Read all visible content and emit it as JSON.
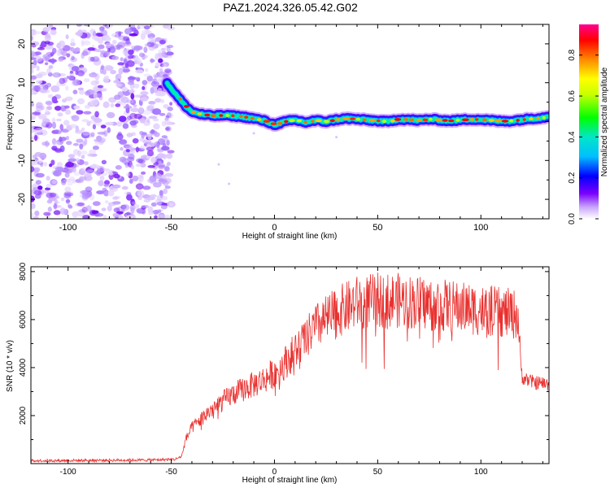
{
  "title": "PAZ1.2024.326.05.42.G02",
  "chart_data": [
    {
      "type": "heatmap",
      "xlabel": "Height of straight line (km)",
      "ylabel": "Frequency (Hz)",
      "xlim": [
        -118,
        133
      ],
      "ylim": [
        -25,
        25
      ],
      "x_ticks": [
        -100,
        -50,
        0,
        50,
        100
      ],
      "y_ticks": [
        -20,
        -10,
        0,
        10,
        20
      ],
      "x_tick_labels": [
        "-100",
        "-50",
        "0",
        "50",
        "100"
      ],
      "y_tick_labels": [
        "-20",
        "-10",
        "0",
        "10",
        "20"
      ],
      "colorbar": {
        "label": "Normalized spectral amplitude",
        "range": [
          0,
          0.95
        ],
        "ticks": [
          0.0,
          0.2,
          0.4,
          0.6,
          0.8
        ],
        "tick_labels": [
          "0.0",
          "0.2",
          "0.4",
          "0.6",
          "0.8"
        ]
      },
      "ridge": {
        "x": [
          -52,
          -50,
          -47,
          -44,
          -40,
          -35,
          -30,
          -25,
          -20,
          -15,
          -10,
          -5,
          0,
          5,
          10,
          15,
          20,
          25,
          30,
          35,
          40,
          45,
          50,
          55,
          60,
          65,
          70,
          75,
          80,
          85,
          90,
          95,
          100,
          105,
          110,
          115,
          120,
          125,
          130,
          133
        ],
        "y": [
          10,
          8.5,
          6.5,
          4.5,
          2.5,
          1.8,
          1.5,
          1.6,
          1.5,
          1.2,
          0.8,
          0.2,
          -0.8,
          0.0,
          0.4,
          -0.2,
          0.3,
          0.0,
          0.5,
          0.8,
          0.6,
          0.4,
          0.2,
          0.0,
          0.6,
          0.5,
          0.3,
          0.6,
          0.4,
          0.2,
          0.4,
          0.6,
          0.5,
          0.3,
          0.1,
          0.2,
          0.5,
          0.8,
          1.0,
          1.5
        ]
      },
      "noise_x_range": [
        -118,
        -50
      ]
    },
    {
      "type": "line",
      "xlabel": "Height of straight line (km)",
      "ylabel": "SNR (10 * v/v)",
      "xlim": [
        -118,
        133
      ],
      "ylim": [
        0,
        8200
      ],
      "x_ticks": [
        -100,
        -50,
        0,
        50,
        100
      ],
      "y_ticks": [
        2000,
        4000,
        6000,
        8000
      ],
      "x_tick_labels": [
        "-100",
        "-50",
        "0",
        "50",
        "100"
      ],
      "y_tick_labels": [
        "2000",
        "4000",
        "6000",
        "8000"
      ],
      "color": "#e8312f",
      "trend": {
        "x": [
          -118,
          -60,
          -48,
          -45,
          -43,
          -40,
          -35,
          -30,
          -25,
          -20,
          -15,
          -10,
          -5,
          0,
          5,
          10,
          15,
          20,
          25,
          30,
          35,
          40,
          50,
          60,
          70,
          80,
          90,
          100,
          110,
          118,
          119,
          120,
          125,
          133
        ],
        "y": [
          120,
          150,
          180,
          300,
          1000,
          1500,
          1900,
          2300,
          2600,
          2900,
          3100,
          3300,
          3500,
          3800,
          4200,
          4700,
          5200,
          5700,
          6000,
          6300,
          6500,
          6700,
          6800,
          6800,
          6700,
          6600,
          6500,
          6400,
          6300,
          6200,
          4500,
          3600,
          3400,
          3300
        ]
      }
    }
  ]
}
